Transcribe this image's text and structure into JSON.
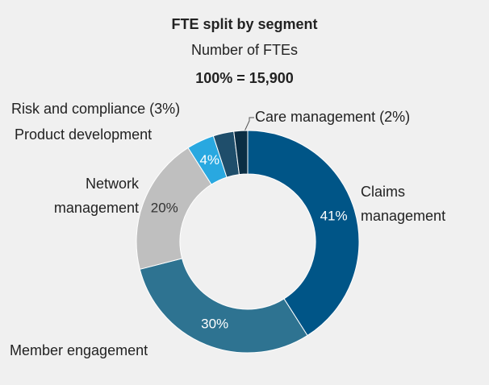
{
  "chart_data": {
    "type": "donut",
    "title": "FTE split by segment",
    "subtitle": "Number of FTEs",
    "total_label": "100% = 15,900",
    "categories": [
      "Claims management",
      "Member engagement",
      "Network management",
      "Product development",
      "Risk and compliance",
      "Care management"
    ],
    "values": [
      41,
      30,
      20,
      4,
      3,
      2
    ],
    "value_labels": [
      "41%",
      "30%",
      "20%",
      "4%",
      "(3%)",
      "(2%)"
    ],
    "colors": [
      "#005587",
      "#2e7391",
      "#bfbfbf",
      "#29a8e0",
      "#1f4e6b",
      "#0b2e44"
    ]
  }
}
